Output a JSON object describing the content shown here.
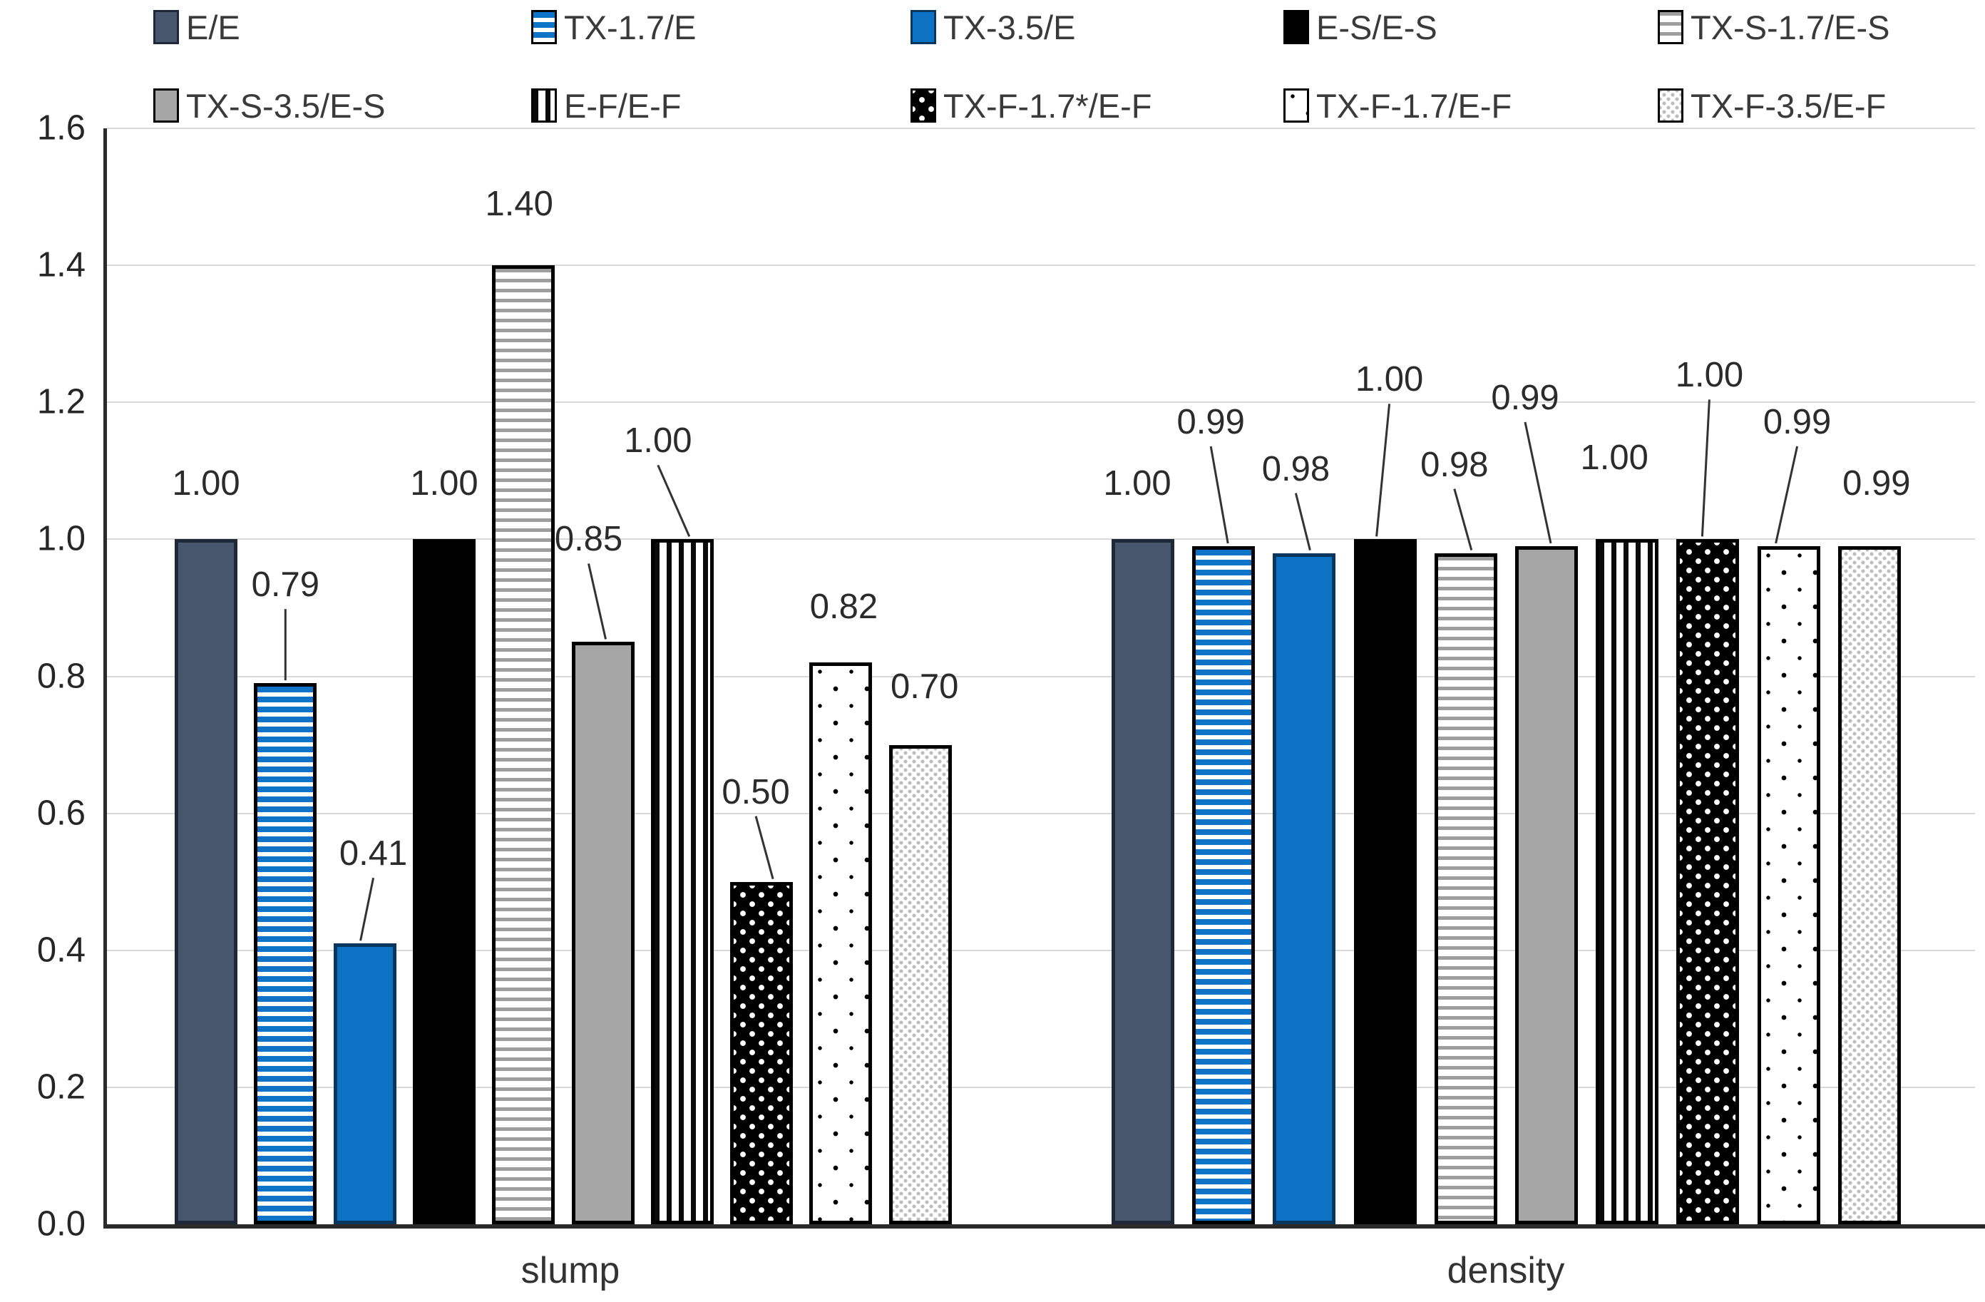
{
  "chart_data": {
    "type": "bar",
    "title": "",
    "categories": [
      "slump",
      "density"
    ],
    "series": [
      {
        "name": "E/E",
        "pattern": "solid-dark-slate",
        "values": [
          1.0,
          1.0
        ]
      },
      {
        "name": "TX-1.7/E",
        "pattern": "hstripe-blue",
        "values": [
          0.79,
          0.99
        ]
      },
      {
        "name": "TX-3.5/E",
        "pattern": "solid-blue",
        "values": [
          0.41,
          0.98
        ]
      },
      {
        "name": "E-S/E-S",
        "pattern": "solid-black",
        "values": [
          1.0,
          1.0
        ]
      },
      {
        "name": "TX-S-1.7/E-S",
        "pattern": "hstripe-gray",
        "values": [
          1.4,
          0.98
        ]
      },
      {
        "name": "TX-S-3.5/E-S",
        "pattern": "solid-gray",
        "values": [
          0.85,
          0.99
        ]
      },
      {
        "name": "E-F/E-F",
        "pattern": "vstripe-black",
        "values": [
          1.0,
          1.0
        ]
      },
      {
        "name": "TX-F-1.7*/E-F",
        "pattern": "white-dots-on-black",
        "values": [
          0.5,
          1.0
        ]
      },
      {
        "name": "TX-F-1.7/E-F",
        "pattern": "black-dots-on-white",
        "values": [
          0.82,
          0.99
        ]
      },
      {
        "name": "TX-F-3.5/E-F",
        "pattern": "light-gray-dots",
        "values": [
          0.7,
          0.99
        ]
      }
    ],
    "value_labels": {
      "slump": [
        "1.00",
        "0.79",
        "0.41",
        "1.00",
        "1.40",
        "0.85",
        "1.00",
        "0.50",
        "0.82",
        "0.70"
      ],
      "density": [
        "1.00",
        "0.99",
        "0.98",
        "1.00",
        "0.98",
        "0.99",
        "1.00",
        "1.00",
        "0.99",
        "0.99"
      ]
    },
    "xlabel": "",
    "ylabel": "",
    "ylim": [
      0,
      1.6
    ],
    "yticks": [
      "0.0",
      "0.2",
      "0.4",
      "0.6",
      "0.8",
      "1.0",
      "1.2",
      "1.4",
      "1.6"
    ],
    "grid": true,
    "legend_position": "top"
  },
  "colors": {
    "dark_slate": "#47566d",
    "blue": "#0d72c4",
    "black": "#000000",
    "gray": "#a6a6a6",
    "gridline": "#d9d9d9",
    "axis": "#2b2b2b",
    "text": "#3a3a3a"
  }
}
